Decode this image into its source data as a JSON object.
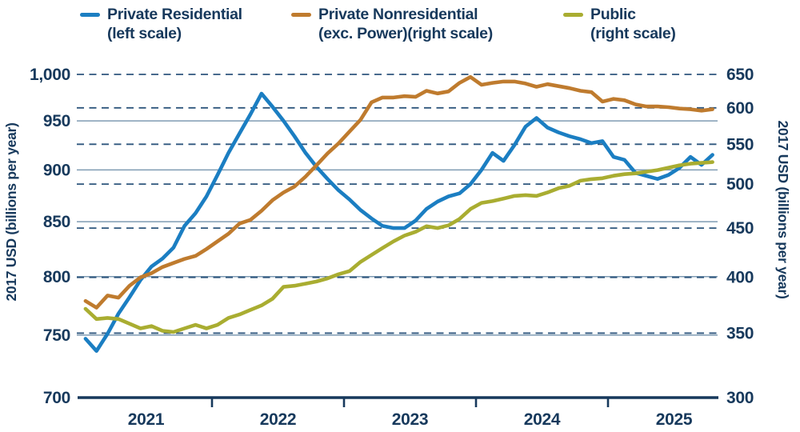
{
  "colors": {
    "background": "#ffffff",
    "text": "#17395c",
    "axis_line": "#17395c",
    "grid_solid": "#7f9bb3",
    "grid_dashed": "#2e567d",
    "blue": "#1b7ec2",
    "orange": "#bf7b2e",
    "olive": "#a9ad31"
  },
  "legend": {
    "items": [
      {
        "label": "Private Residential",
        "sublabel": "(left scale)",
        "color": "#1b7ec2"
      },
      {
        "label": "Private Nonresidential",
        "sublabel": "(exc. Power)(right scale)",
        "color": "#bf7b2e"
      },
      {
        "label": "Public",
        "sublabel": "(right scale)",
        "color": "#a9ad31"
      }
    ]
  },
  "left_axis": {
    "title": "2017 USD (billions per year)",
    "tick_labels": [
      "1,000",
      "950",
      "900",
      "850",
      "800",
      "750",
      "700"
    ],
    "tick_values": [
      1000,
      950,
      900,
      850,
      800,
      750,
      700
    ]
  },
  "right_axis": {
    "title": "2017 USD (billions per year)",
    "tick_labels": [
      "650",
      "600",
      "550",
      "500",
      "450",
      "400",
      "350",
      "300"
    ],
    "tick_values": [
      650,
      600,
      550,
      500,
      450,
      400,
      350,
      300
    ]
  },
  "x_axis": {
    "year_labels": [
      "2021",
      "2022",
      "2023",
      "2024",
      "2025"
    ]
  },
  "chart_data": {
    "type": "line",
    "x_unit": "month",
    "x_start": "2021-01",
    "x_end": "2025-10",
    "n_points": 58,
    "scale": "log",
    "left_range": [
      700,
      1000
    ],
    "right_range": [
      300,
      650
    ],
    "gridlines": {
      "solid_left_values": [
        950,
        900,
        850,
        800,
        750
      ],
      "dashed_right_values": [
        650,
        600,
        550,
        500,
        450,
        400,
        350
      ]
    },
    "legend_position": "top",
    "series": [
      {
        "name": "Private Residential",
        "axis": "left",
        "color": "#1b7ec2",
        "values": [
          747,
          737,
          751,
          768,
          782,
          797,
          809,
          816,
          826,
          846,
          858,
          874,
          895,
          917,
          937,
          957,
          979,
          965,
          950,
          934,
          917,
          903,
          891,
          880,
          871,
          861,
          853,
          846,
          844,
          844,
          851,
          862,
          869,
          874,
          877,
          886,
          900,
          917,
          909,
          925,
          944,
          953,
          943,
          938,
          934,
          931,
          927,
          929,
          913,
          910,
          897,
          894,
          891,
          895,
          902,
          913,
          905,
          915
        ]
      },
      {
        "name": "Public",
        "axis": "right",
        "color": "#a9ad31",
        "values": [
          371,
          362,
          363,
          362,
          358,
          354,
          356,
          352,
          351,
          354,
          357,
          354,
          357,
          363,
          366,
          370,
          374,
          380,
          391,
          392,
          394,
          396,
          399,
          403,
          406,
          415,
          422,
          429,
          436,
          442,
          446,
          452,
          450,
          453,
          460,
          471,
          478,
          480,
          483,
          486,
          487,
          486,
          490,
          495,
          498,
          504,
          506,
          507,
          510,
          512,
          513,
          515,
          517,
          520,
          523,
          525,
          526,
          527
        ]
      },
      {
        "name": "Private Nonresidential (exc. Power)",
        "axis": "right",
        "color": "#bf7b2e",
        "values": [
          378,
          372,
          383,
          381,
          392,
          400,
          404,
          410,
          414,
          418,
          421,
          428,
          436,
          444,
          455,
          459,
          469,
          481,
          490,
          497,
          509,
          523,
          538,
          551,
          567,
          583,
          608,
          615,
          615,
          617,
          616,
          625,
          621,
          624,
          637,
          646,
          634,
          637,
          639,
          639,
          636,
          631,
          635,
          632,
          629,
          625,
          623,
          609,
          613,
          611,
          605,
          602,
          602,
          601,
          599,
          598,
          596,
          598
        ]
      }
    ]
  }
}
